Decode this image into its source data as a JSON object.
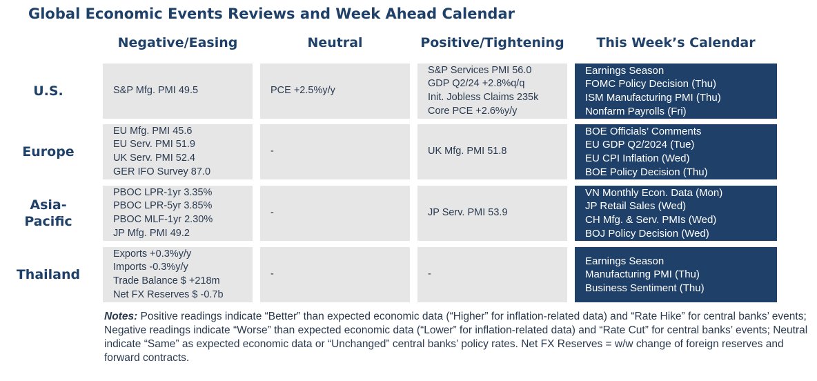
{
  "title": "Global Economic Events Reviews and Week Ahead Calendar",
  "columns": [
    "Negative/Easing",
    "Neutral",
    "Positive/Tightening",
    "This Week’s Calendar"
  ],
  "rows": [
    {
      "region": "U.S.",
      "negative": [
        "S&P Mfg. PMI 49.5"
      ],
      "neutral": [
        "PCE +2.5%y/y"
      ],
      "positive": [
        "S&P Services PMI 56.0",
        "GDP Q2/24 +2.8%q/q",
        "Init. Jobless Claims 235k",
        "Core PCE +2.6%y/y"
      ],
      "calendar": [
        "Earnings Season",
        "FOMC Policy Decision (Thu)",
        "ISM Manufacturing PMI (Thu)",
        "Nonfarm Payrolls (Fri)"
      ]
    },
    {
      "region": "Europe",
      "negative": [
        "EU Mfg. PMI 45.6",
        "EU Serv. PMI 51.9",
        "UK Serv. PMI 52.4",
        "GER IFO Survey 87.0"
      ],
      "neutral": [
        "-"
      ],
      "positive": [
        "UK Mfg. PMI 51.8"
      ],
      "calendar": [
        "BOE Officials’ Comments",
        "EU GDP Q2/2024 (Tue)",
        "EU CPI Inflation (Wed)",
        "BOE Policy Decision (Thu)"
      ]
    },
    {
      "region": "Asia-Pacific",
      "region_lines": [
        "Asia-",
        "Pacific"
      ],
      "negative": [
        "PBOC LPR-1yr 3.35%",
        "PBOC LPR-5yr 3.85%",
        "PBOC MLF-1yr 2.30%",
        "JP Mfg. PMI 49.2"
      ],
      "neutral": [
        "-"
      ],
      "positive": [
        "JP Serv. PMI 53.9"
      ],
      "calendar": [
        "VN Monthly Econ. Data (Mon)",
        "JP Retail Sales (Wed)",
        "CH Mfg. & Serv. PMIs (Wed)",
        "BOJ Policy Decision (Wed)"
      ]
    },
    {
      "region": "Thailand",
      "negative": [
        "Exports +0.3%y/y",
        "Imports -0.3%y/y",
        "Trade Balance $ +218m",
        "Net FX Reserves $ -0.7b"
      ],
      "neutral": [
        "-"
      ],
      "positive": [
        "-"
      ],
      "calendar": [
        "Earnings Season",
        "Manufacturing PMI (Thu)",
        "Business Sentiment (Thu)"
      ]
    }
  ],
  "notes": {
    "label": "Notes:",
    "text": " Positive readings indicate “Better” than expected economic data (“Higher” for inflation-related data) and “Rate Hike” for central banks’ events; Negative readings indicate “Worse” than expected economic data (“Lower” for inflation-related data) and “Rate Cut” for central banks’ events; Neutral indicate “Same” as expected economic data or “Unchanged” central banks’ policy rates. Net FX Reserves = w/w change of foreign reserves and forward contracts."
  }
}
